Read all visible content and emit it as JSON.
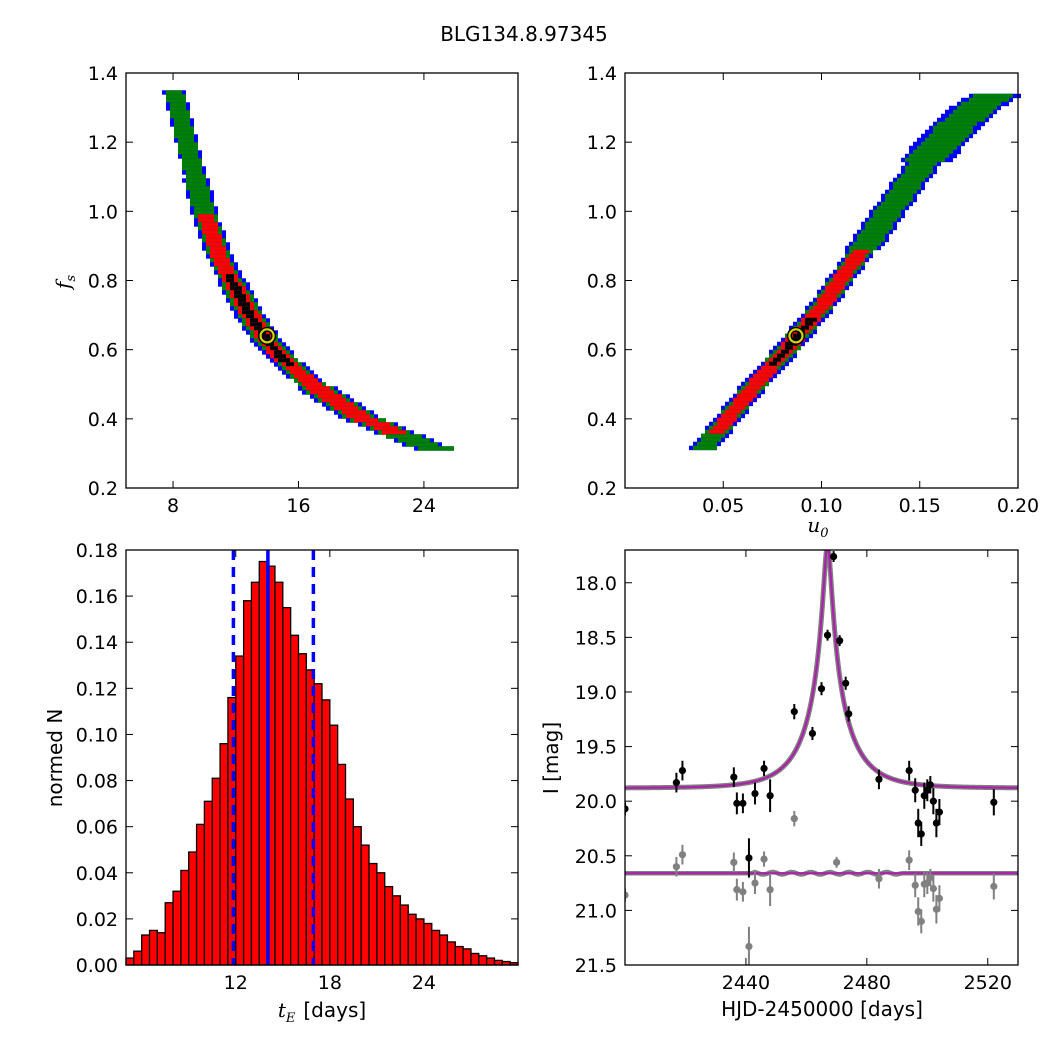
{
  "figure": {
    "title": "BLG134.8.97345"
  },
  "chart_data": [
    {
      "id": "panel-fs-vs-tE",
      "type": "heatmap",
      "title": "",
      "xlabel": "",
      "ylabel_symbol": "f",
      "ylabel_sub": "s",
      "xlim": [
        5,
        30
      ],
      "ylim": [
        0.2,
        1.4
      ],
      "xticks": [
        8,
        16,
        24
      ],
      "xtick_labels": [
        "8",
        "16",
        "24"
      ],
      "yticks": [
        0.2,
        0.4,
        0.6,
        0.8,
        1.0,
        1.2,
        1.4
      ],
      "ytick_labels": [
        "0.2",
        "0.4",
        "0.6",
        "0.8",
        "1.0",
        "1.2",
        "1.4"
      ],
      "contour_levels": [
        {
          "name": "outer",
          "color": "#0000ff"
        },
        {
          "name": "2sigma",
          "color": "#008000"
        },
        {
          "name": "1sigma",
          "color": "#ff0000"
        },
        {
          "name": "core",
          "color": "#000000"
        }
      ],
      "ridge": [
        [
          8.1,
          1.35
        ],
        [
          9.0,
          1.18
        ],
        [
          10.0,
          1.0
        ],
        [
          11.0,
          0.87
        ],
        [
          12.0,
          0.78
        ],
        [
          13.0,
          0.7
        ],
        [
          14.0,
          0.63
        ],
        [
          15.0,
          0.58
        ],
        [
          16.0,
          0.54
        ],
        [
          17.0,
          0.5
        ],
        [
          18.0,
          0.47
        ],
        [
          19.0,
          0.44
        ],
        [
          20.0,
          0.41
        ],
        [
          21.0,
          0.39
        ],
        [
          22.0,
          0.37
        ],
        [
          23.0,
          0.35
        ],
        [
          24.0,
          0.33
        ],
        [
          24.8,
          0.32
        ]
      ],
      "best_fit": {
        "x": 14.0,
        "y": 0.64
      }
    },
    {
      "id": "panel-fs-vs-u0",
      "type": "heatmap",
      "title": "",
      "xlabel_symbol": "u",
      "xlabel_sub": "0",
      "ylabel": "",
      "xlim": [
        0.0,
        0.2
      ],
      "ylim": [
        0.2,
        1.4
      ],
      "xticks": [
        0.05,
        0.1,
        0.15,
        0.2
      ],
      "xtick_labels": [
        "0.05",
        "0.10",
        "0.15",
        "0.20"
      ],
      "yticks": [
        0.2,
        0.4,
        0.6,
        0.8,
        1.0,
        1.2,
        1.4
      ],
      "ytick_labels": [
        "0.2",
        "0.4",
        "0.6",
        "0.8",
        "1.0",
        "1.2",
        "1.4"
      ],
      "ridge": [
        [
          0.04,
          0.32
        ],
        [
          0.05,
          0.39
        ],
        [
          0.06,
          0.46
        ],
        [
          0.07,
          0.53
        ],
        [
          0.08,
          0.59
        ],
        [
          0.09,
          0.66
        ],
        [
          0.1,
          0.73
        ],
        [
          0.11,
          0.81
        ],
        [
          0.12,
          0.89
        ],
        [
          0.13,
          0.97
        ],
        [
          0.14,
          1.05
        ],
        [
          0.15,
          1.13
        ],
        [
          0.16,
          1.2
        ],
        [
          0.17,
          1.26
        ],
        [
          0.18,
          1.31
        ],
        [
          0.188,
          1.34
        ]
      ],
      "best_fit": {
        "x": 0.087,
        "y": 0.64
      }
    },
    {
      "id": "panel-tE-histogram",
      "type": "bar",
      "title": "",
      "xlabel_symbol": "t",
      "xlabel_sub": "E",
      "xlabel_suffix": "[days]",
      "ylabel": "normed N",
      "xlim": [
        5,
        30
      ],
      "ylim": [
        0.0,
        0.18
      ],
      "bin_start": 5.0,
      "bin_width": 0.5,
      "values": [
        0.003,
        0.006,
        0.013,
        0.015,
        0.014,
        0.027,
        0.032,
        0.041,
        0.049,
        0.061,
        0.071,
        0.081,
        0.096,
        0.116,
        0.134,
        0.158,
        0.166,
        0.175,
        0.173,
        0.166,
        0.155,
        0.143,
        0.135,
        0.128,
        0.122,
        0.115,
        0.104,
        0.087,
        0.072,
        0.06,
        0.052,
        0.044,
        0.04,
        0.034,
        0.03,
        0.026,
        0.022,
        0.02,
        0.018,
        0.015,
        0.013,
        0.01,
        0.008,
        0.007,
        0.005,
        0.004,
        0.003,
        0.002,
        0.0015,
        0.001
      ],
      "xticks": [
        12,
        18,
        24
      ],
      "xtick_labels": [
        "12",
        "18",
        "24"
      ],
      "yticks": [
        0.0,
        0.02,
        0.04,
        0.06,
        0.08,
        0.1,
        0.12,
        0.14,
        0.16,
        0.18
      ],
      "ytick_labels": [
        "0.00",
        "0.02",
        "0.04",
        "0.06",
        "0.08",
        "0.10",
        "0.12",
        "0.14",
        "0.16",
        "0.18"
      ],
      "bar_color": "#ff0000",
      "median_line": 14.05,
      "interval_lines": [
        11.85,
        16.95
      ],
      "line_color": "#0000ff"
    },
    {
      "id": "panel-lightcurve",
      "type": "scatter",
      "title": "",
      "xlabel": "HJD-2450000 [days]",
      "ylabel": "I [mag]",
      "xlim": [
        2400,
        2530
      ],
      "ylim": [
        21.5,
        17.7
      ],
      "xticks": [
        2440,
        2480,
        2520
      ],
      "xtick_labels": [
        "2440",
        "2480",
        "2520"
      ],
      "yticks": [
        18.0,
        18.5,
        19.0,
        19.5,
        20.0,
        20.5,
        21.0,
        21.5
      ],
      "ytick_labels": [
        "18.0",
        "18.5",
        "19.0",
        "19.5",
        "20.0",
        "20.5",
        "21.0",
        "21.5"
      ],
      "model": {
        "t0": 2467.0,
        "tE": 14.0,
        "u0": 0.087,
        "fs": 0.64,
        "base_mag": 19.88,
        "color": "#aa22aa"
      },
      "residual_offset": 20.66,
      "series": [
        {
          "color": "#000000",
          "points": [
            [
              2400,
              20.07,
              0.06
            ],
            [
              2417,
              19.83,
              0.09
            ],
            [
              2419,
              19.72,
              0.09
            ],
            [
              2436,
              19.78,
              0.09
            ],
            [
              2437,
              20.02,
              0.1
            ],
            [
              2439,
              20.02,
              0.09
            ],
            [
              2441,
              20.52,
              0.18
            ],
            [
              2443,
              19.93,
              0.1
            ],
            [
              2446,
              19.7,
              0.07
            ],
            [
              2448,
              19.95,
              0.15
            ],
            [
              2456,
              19.18,
              0.07
            ],
            [
              2462,
              19.38,
              0.06
            ],
            [
              2465,
              18.97,
              0.06
            ],
            [
              2467,
              18.48,
              0.05
            ],
            [
              2469,
              17.76,
              0.05
            ],
            [
              2471,
              18.53,
              0.05
            ],
            [
              2473,
              18.92,
              0.06
            ],
            [
              2474,
              19.2,
              0.07
            ],
            [
              2484,
              19.8,
              0.09
            ],
            [
              2494,
              19.72,
              0.09
            ],
            [
              2496,
              19.9,
              0.11
            ],
            [
              2497,
              20.2,
              0.13
            ],
            [
              2498,
              20.3,
              0.11
            ],
            [
              2499,
              19.95,
              0.12
            ],
            [
              2500,
              19.9,
              0.1
            ],
            [
              2501,
              19.85,
              0.08
            ],
            [
              2502,
              20.0,
              0.12
            ],
            [
              2503,
              20.2,
              0.13
            ],
            [
              2504,
              20.1,
              0.12
            ],
            [
              2522,
              20.01,
              0.12
            ]
          ]
        },
        {
          "color": "#808080",
          "points": [
            [
              2400,
              20.86,
              0.06
            ],
            [
              2417,
              20.6,
              0.09
            ],
            [
              2419,
              20.49,
              0.09
            ],
            [
              2436,
              20.56,
              0.09
            ],
            [
              2437,
              20.81,
              0.1
            ],
            [
              2439,
              20.83,
              0.09
            ],
            [
              2441,
              21.33,
              0.18
            ],
            [
              2443,
              20.75,
              0.1
            ],
            [
              2446,
              20.53,
              0.07
            ],
            [
              2448,
              20.81,
              0.15
            ],
            [
              2456,
              20.16,
              0.07
            ],
            [
              2470,
              20.56,
              0.05
            ],
            [
              2484,
              20.71,
              0.09
            ],
            [
              2494,
              20.54,
              0.09
            ],
            [
              2496,
              20.77,
              0.11
            ],
            [
              2497,
              21.01,
              0.13
            ],
            [
              2498,
              21.1,
              0.11
            ],
            [
              2499,
              20.76,
              0.12
            ],
            [
              2500,
              20.75,
              0.1
            ],
            [
              2501,
              20.7,
              0.08
            ],
            [
              2502,
              20.8,
              0.12
            ],
            [
              2503,
              20.99,
              0.13
            ],
            [
              2504,
              20.89,
              0.12
            ],
            [
              2522,
              20.78,
              0.12
            ]
          ]
        }
      ]
    }
  ]
}
